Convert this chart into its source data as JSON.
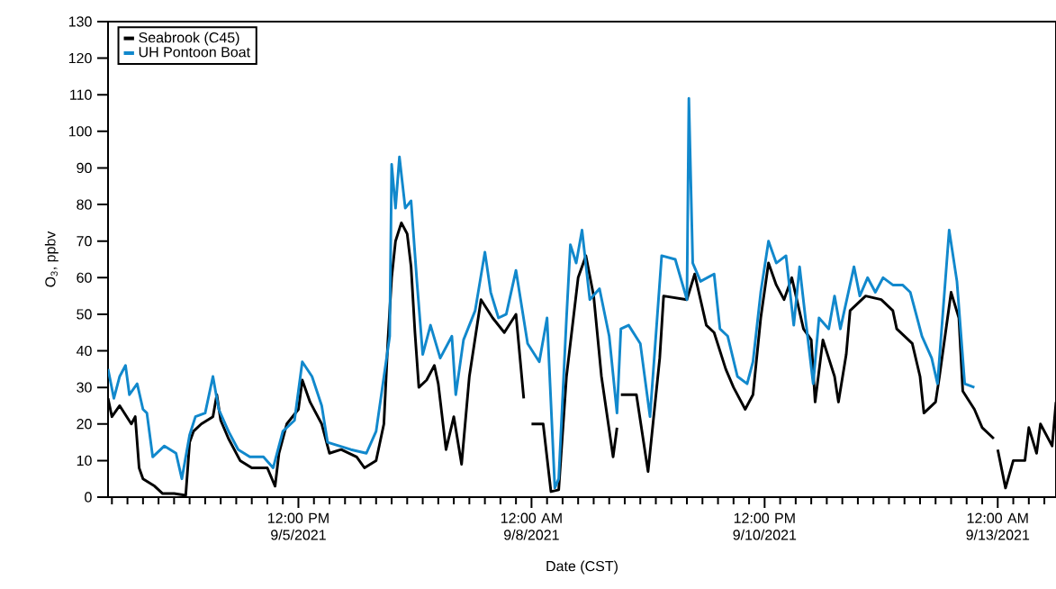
{
  "chart_data": {
    "type": "line",
    "xlabel": "Date (CST)",
    "ylabel": "O$_{3}$, ppbv",
    "xlim": [
      "2021-09-03T11:00",
      "2021-09-13T15:00"
    ],
    "ylim": [
      0,
      130
    ],
    "yticks": [
      0,
      10,
      20,
      30,
      40,
      50,
      60,
      70,
      80,
      90,
      100,
      110,
      120,
      130
    ],
    "xticks": [
      {
        "value": "2021-09-03T12:00",
        "label": null
      },
      {
        "value": "2021-09-03T16:00",
        "label": null
      },
      {
        "value": "2021-09-03T20:00",
        "label": null
      },
      {
        "value": "2021-09-04T00:00",
        "label": null
      },
      {
        "value": "2021-09-04T04:00",
        "label": null
      },
      {
        "value": "2021-09-04T08:00",
        "label": null
      },
      {
        "value": "2021-09-04T12:00",
        "label": null
      },
      {
        "value": "2021-09-04T16:00",
        "label": null
      },
      {
        "value": "2021-09-04T20:00",
        "label": null
      },
      {
        "value": "2021-09-05T00:00",
        "label": null
      },
      {
        "value": "2021-09-05T04:00",
        "label": null
      },
      {
        "value": "2021-09-05T08:00",
        "label": null
      },
      {
        "value": "2021-09-05T12:00",
        "label": "12:00 PM 9/5/2021"
      },
      {
        "value": "2021-09-05T16:00",
        "label": null
      },
      {
        "value": "2021-09-05T20:00",
        "label": null
      },
      {
        "value": "2021-09-06T00:00",
        "label": null
      },
      {
        "value": "2021-09-06T04:00",
        "label": null
      },
      {
        "value": "2021-09-06T08:00",
        "label": null
      },
      {
        "value": "2021-09-06T12:00",
        "label": null
      },
      {
        "value": "2021-09-06T16:00",
        "label": null
      },
      {
        "value": "2021-09-06T20:00",
        "label": null
      },
      {
        "value": "2021-09-07T00:00",
        "label": null
      },
      {
        "value": "2021-09-07T04:00",
        "label": null
      },
      {
        "value": "2021-09-07T08:00",
        "label": null
      },
      {
        "value": "2021-09-07T12:00",
        "label": null
      },
      {
        "value": "2021-09-07T16:00",
        "label": null
      },
      {
        "value": "2021-09-07T20:00",
        "label": null
      },
      {
        "value": "2021-09-08T00:00",
        "label": "12:00 AM 9/8/2021"
      },
      {
        "value": "2021-09-08T04:00",
        "label": null
      },
      {
        "value": "2021-09-08T08:00",
        "label": null
      },
      {
        "value": "2021-09-08T12:00",
        "label": null
      },
      {
        "value": "2021-09-08T16:00",
        "label": null
      },
      {
        "value": "2021-09-08T20:00",
        "label": null
      },
      {
        "value": "2021-09-09T00:00",
        "label": null
      },
      {
        "value": "2021-09-09T04:00",
        "label": null
      },
      {
        "value": "2021-09-09T08:00",
        "label": null
      },
      {
        "value": "2021-09-09T12:00",
        "label": null
      },
      {
        "value": "2021-09-09T16:00",
        "label": null
      },
      {
        "value": "2021-09-09T20:00",
        "label": null
      },
      {
        "value": "2021-09-10T00:00",
        "label": null
      },
      {
        "value": "2021-09-10T04:00",
        "label": null
      },
      {
        "value": "2021-09-10T08:00",
        "label": null
      },
      {
        "value": "2021-09-10T12:00",
        "label": "12:00 PM 9/10/2021"
      },
      {
        "value": "2021-09-10T16:00",
        "label": null
      },
      {
        "value": "2021-09-10T20:00",
        "label": null
      },
      {
        "value": "2021-09-11T00:00",
        "label": null
      },
      {
        "value": "2021-09-11T04:00",
        "label": null
      },
      {
        "value": "2021-09-11T08:00",
        "label": null
      },
      {
        "value": "2021-09-11T12:00",
        "label": null
      },
      {
        "value": "2021-09-11T16:00",
        "label": null
      },
      {
        "value": "2021-09-11T20:00",
        "label": null
      },
      {
        "value": "2021-09-12T00:00",
        "label": null
      },
      {
        "value": "2021-09-12T04:00",
        "label": null
      },
      {
        "value": "2021-09-12T08:00",
        "label": null
      },
      {
        "value": "2021-09-12T12:00",
        "label": null
      },
      {
        "value": "2021-09-12T16:00",
        "label": null
      },
      {
        "value": "2021-09-12T20:00",
        "label": null
      },
      {
        "value": "2021-09-13T00:00",
        "label": "12:00 AM 9/13/2021"
      },
      {
        "value": "2021-09-13T04:00",
        "label": null
      },
      {
        "value": "2021-09-13T08:00",
        "label": null
      },
      {
        "value": "2021-09-13T12:00",
        "label": null
      }
    ],
    "legend": "top left",
    "series": [
      {
        "name": "Seabrook (C45)",
        "color": "#000000",
        "x": [
          "2021-09-03T11:00",
          "2021-09-03T12:00",
          "2021-09-03T14:00",
          "2021-09-03T17:00",
          "2021-09-03T18:00",
          "2021-09-03T19:00",
          "2021-09-03T20:00",
          "2021-09-03T23:00",
          "2021-09-04T01:00",
          "2021-09-04T04:00",
          "2021-09-04T07:00",
          "2021-09-04T08:00",
          "2021-09-04T09:00",
          "2021-09-04T11:00",
          "2021-09-04T14:00",
          "2021-09-04T15:00",
          "2021-09-04T16:00",
          "2021-09-04T18:00",
          "2021-09-04T21:00",
          "2021-09-05T00:00",
          "2021-09-05T04:00",
          "2021-09-05T06:00",
          "2021-09-05T07:00",
          "2021-09-05T09:00",
          "2021-09-05T12:00",
          "2021-09-05T13:00",
          "2021-09-05T15:00",
          "2021-09-05T18:00",
          "2021-09-05T20:00",
          "2021-09-05T23:00",
          "2021-09-06T03:00",
          "2021-09-06T05:00",
          "2021-09-06T08:00",
          "2021-09-06T10:00",
          "2021-09-06T11:00",
          "2021-09-06T12:00",
          "2021-09-06T13:00",
          "2021-09-06T14:30",
          "2021-09-06T16:00",
          "2021-09-06T17:00",
          "2021-09-06T18:00",
          "2021-09-06T19:00",
          "2021-09-06T21:00",
          "2021-09-06T23:00",
          "2021-09-07T00:00",
          "2021-09-07T02:00",
          "2021-09-07T04:00",
          "2021-09-07T06:00",
          "2021-09-07T08:00",
          "2021-09-07T11:00",
          "2021-09-07T14:00",
          "2021-09-07T17:00",
          "2021-09-07T20:00",
          "2021-09-07T22:00",
          "2021-09-07T23:00",
          "2021-09-08T00:00",
          "2021-09-08T03:00",
          "2021-09-08T05:00",
          "2021-09-08T07:00",
          "2021-09-08T09:00",
          "2021-09-08T12:00",
          "2021-09-08T14:00",
          "2021-09-08T16:00",
          "2021-09-08T18:00",
          "2021-09-08T21:00",
          "2021-09-08T22:00",
          "2021-09-08T22:30",
          "2021-09-08T23:00",
          "2021-09-09T03:00",
          "2021-09-09T06:00",
          "2021-09-09T09:00",
          "2021-09-09T10:00",
          "2021-09-09T16:00",
          "2021-09-09T18:00",
          "2021-09-09T21:00",
          "2021-09-09T23:00",
          "2021-09-10T02:00",
          "2021-09-10T04:00",
          "2021-09-10T07:00",
          "2021-09-10T09:00",
          "2021-09-10T11:00",
          "2021-09-10T13:00",
          "2021-09-10T15:00",
          "2021-09-10T17:00",
          "2021-09-10T19:00",
          "2021-09-10T22:00",
          "2021-09-11T00:00",
          "2021-09-11T01:00",
          "2021-09-11T03:00",
          "2021-09-11T06:00",
          "2021-09-11T07:00",
          "2021-09-11T09:00",
          "2021-09-11T10:00",
          "2021-09-11T14:00",
          "2021-09-11T18:00",
          "2021-09-11T21:00",
          "2021-09-11T22:00",
          "2021-09-12T02:00",
          "2021-09-12T04:00",
          "2021-09-12T05:00",
          "2021-09-12T08:00",
          "2021-09-12T09:00",
          "2021-09-12T12:00",
          "2021-09-12T14:00",
          "2021-09-12T15:00",
          "2021-09-12T18:00",
          "2021-09-12T20:00",
          "2021-09-12T23:00",
          "2021-09-12T23:30",
          "2021-09-13T00:00",
          "2021-09-13T02:00",
          "2021-09-13T04:00",
          "2021-09-13T07:00",
          "2021-09-13T08:00",
          "2021-09-13T10:00",
          "2021-09-13T11:00",
          "2021-09-13T14:00",
          "2021-09-13T15:00"
        ],
        "values": [
          27,
          22,
          25,
          20,
          22,
          8,
          5,
          3,
          1,
          1,
          0.5,
          15,
          18,
          20,
          22,
          28,
          21,
          16,
          10,
          8,
          8,
          3,
          12,
          20,
          24,
          32,
          26,
          20,
          12,
          13,
          11,
          8,
          10,
          20,
          42,
          60,
          70,
          75,
          72,
          63,
          45,
          30,
          32,
          36,
          31,
          13,
          22,
          9,
          33,
          54,
          49,
          45,
          50,
          27,
          null,
          20,
          20,
          1.5,
          2,
          33,
          60,
          66,
          55,
          33,
          11,
          19,
          null,
          28,
          28,
          7,
          38,
          55,
          54,
          61,
          47,
          45,
          35,
          30,
          24,
          28,
          49,
          64,
          58,
          54,
          60,
          46,
          43,
          26,
          43,
          33,
          26,
          39,
          51,
          55,
          54,
          51,
          46,
          42,
          33,
          23,
          26,
          33,
          56,
          49,
          29,
          24,
          19,
          16,
          null,
          13,
          2.5,
          10,
          10,
          19,
          12,
          20,
          14,
          26
        ]
      },
      {
        "name": "UH Pontoon Boat",
        "color": "#1188cc",
        "x": [
          "2021-09-03T11:00",
          "2021-09-03T12:30",
          "2021-09-03T14:00",
          "2021-09-03T15:30",
          "2021-09-03T16:30",
          "2021-09-03T18:30",
          "2021-09-03T20:00",
          "2021-09-03T21:00",
          "2021-09-03T22:30",
          "2021-09-04T01:30",
          "2021-09-04T04:30",
          "2021-09-04T06:00",
          "2021-09-04T08:00",
          "2021-09-04T09:30",
          "2021-09-04T12:00",
          "2021-09-04T14:00",
          "2021-09-04T15:30",
          "2021-09-04T18:00",
          "2021-09-04T20:30",
          "2021-09-04T23:30",
          "2021-09-05T03:00",
          "2021-09-05T05:30",
          "2021-09-05T08:00",
          "2021-09-05T11:00",
          "2021-09-05T13:00",
          "2021-09-05T15:30",
          "2021-09-05T18:00",
          "2021-09-05T19:30",
          "2021-09-05T22:30",
          "2021-09-06T01:30",
          "2021-09-06T05:30",
          "2021-09-06T08:00",
          "2021-09-06T11:30",
          "2021-09-06T12:00",
          "2021-09-06T13:00",
          "2021-09-06T14:00",
          "2021-09-06T15:30",
          "2021-09-06T17:00",
          "2021-09-06T18:30",
          "2021-09-06T20:00",
          "2021-09-06T22:00",
          "2021-09-07T00:30",
          "2021-09-07T03:30",
          "2021-09-07T04:30",
          "2021-09-07T06:30",
          "2021-09-07T09:30",
          "2021-09-07T12:00",
          "2021-09-07T13:30",
          "2021-09-07T15:30",
          "2021-09-07T17:30",
          "2021-09-07T20:00",
          "2021-09-07T23:00",
          "2021-09-08T02:00",
          "2021-09-08T04:00",
          "2021-09-08T06:00",
          "2021-09-08T07:00",
          "2021-09-08T09:00",
          "2021-09-08T10:00",
          "2021-09-08T11:30",
          "2021-09-08T13:00",
          "2021-09-08T15:00",
          "2021-09-08T17:30",
          "2021-09-08T20:00",
          "2021-09-08T22:00",
          "2021-09-08T23:00",
          "2021-09-09T01:00",
          "2021-09-09T04:00",
          "2021-09-09T06:30",
          "2021-09-09T09:30",
          "2021-09-09T13:00",
          "2021-09-09T16:00",
          "2021-09-09T16:30",
          "2021-09-09T17:30",
          "2021-09-09T19:30",
          "2021-09-09T23:00",
          "2021-09-10T00:30",
          "2021-09-10T02:30",
          "2021-09-10T05:00",
          "2021-09-10T07:30",
          "2021-09-10T09:00",
          "2021-09-10T11:00",
          "2021-09-10T13:00",
          "2021-09-10T15:00",
          "2021-09-10T17:30",
          "2021-09-10T19:30",
          "2021-09-10T21:00",
          "2021-09-10T22:30",
          "2021-09-11T00:30",
          "2021-09-11T02:00",
          "2021-09-11T04:30",
          "2021-09-11T06:00",
          "2021-09-11T07:30",
          "2021-09-11T11:00",
          "2021-09-11T12:30",
          "2021-09-11T14:30",
          "2021-09-11T16:30",
          "2021-09-11T18:30",
          "2021-09-11T21:00",
          "2021-09-11T23:30",
          "2021-09-12T01:30",
          "2021-09-12T03:00",
          "2021-09-12T04:30",
          "2021-09-12T07:00",
          "2021-09-12T08:30",
          "2021-09-12T11:30",
          "2021-09-12T13:30",
          "2021-09-12T15:30",
          "2021-09-12T18:00"
        ],
        "values": [
          35,
          27,
          33,
          36,
          28,
          31,
          24,
          23,
          11,
          14,
          12,
          5,
          17,
          22,
          23,
          33,
          24,
          18,
          13,
          11,
          11,
          8,
          18,
          21,
          37,
          33,
          25,
          15,
          14,
          13,
          12,
          18,
          44,
          91,
          79,
          93,
          79,
          81,
          59,
          39,
          47,
          38,
          44,
          28,
          43,
          51,
          67,
          56,
          49,
          50,
          62,
          42,
          37,
          49,
          2.5,
          5,
          49,
          69,
          64,
          73,
          54,
          57,
          44,
          23,
          46,
          47,
          42,
          22,
          66,
          65,
          54,
          109,
          64,
          59,
          61,
          46,
          44,
          33,
          31,
          37,
          56,
          70,
          64,
          66,
          47,
          63,
          49,
          31,
          49,
          46,
          55,
          46,
          63,
          55,
          60,
          56,
          60,
          58,
          58,
          56,
          50,
          44,
          38,
          31,
          73,
          59,
          31,
          30
        ]
      }
    ]
  }
}
